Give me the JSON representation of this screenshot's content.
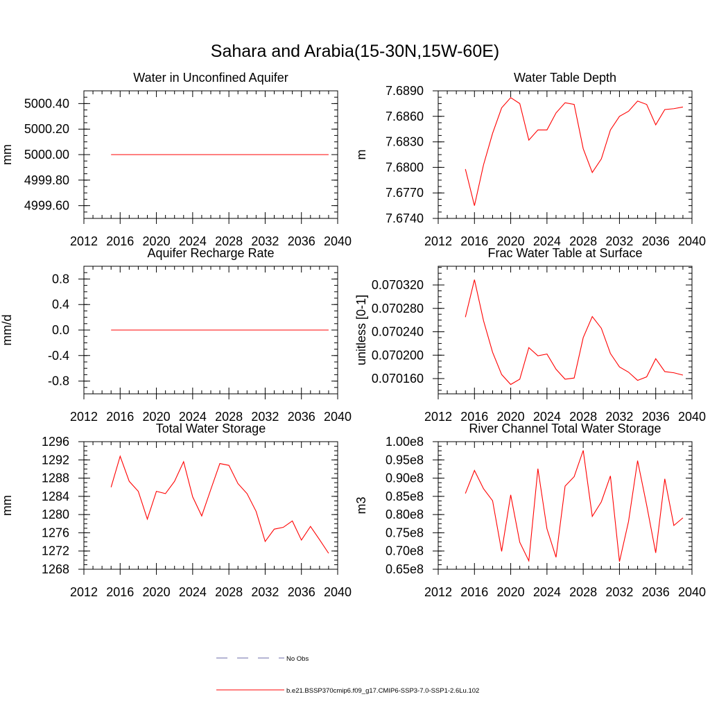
{
  "figure": {
    "title": "Sahara and Arabia(15-30N,15W-60E)",
    "series_color": "#ff0000",
    "obs_color": "#6a6aa8"
  },
  "legend": {
    "obs_label": "No Obs",
    "model_label": "b.e21.BSSP370cmip6.f09_g17.CMIP6-SSP3-7.0-SSP1-2.6Lu.102"
  },
  "chart_data": [
    {
      "type": "line",
      "title": "Water in Unconfined Aquifer",
      "xlabel": "",
      "ylabel": "mm",
      "xlim": [
        2012,
        2040
      ],
      "ylim": [
        4999.5,
        5000.5
      ],
      "xticks": [
        "2012",
        "2016",
        "2020",
        "2024",
        "2028",
        "2032",
        "2036",
        "2040"
      ],
      "yticks": [
        {
          "v": 4999.6,
          "label": "4999.60"
        },
        {
          "v": 4999.8,
          "label": "4999.80"
        },
        {
          "v": 5000.0,
          "label": "5000.00"
        },
        {
          "v": 5000.2,
          "label": "5000.20"
        },
        {
          "v": 5000.4,
          "label": "5000.40"
        }
      ],
      "x": [
        2015,
        2039
      ],
      "y": [
        5000.0,
        5000.0
      ]
    },
    {
      "type": "line",
      "title": "Water Table Depth",
      "xlabel": "",
      "ylabel": "m",
      "xlim": [
        2012,
        2040
      ],
      "ylim": [
        7.674,
        7.689
      ],
      "xticks": [
        "2012",
        "2016",
        "2020",
        "2024",
        "2028",
        "2032",
        "2036",
        "2040"
      ],
      "yticks": [
        {
          "v": 7.674,
          "label": "7.6740"
        },
        {
          "v": 7.677,
          "label": "7.6770"
        },
        {
          "v": 7.68,
          "label": "7.6800"
        },
        {
          "v": 7.683,
          "label": "7.6830"
        },
        {
          "v": 7.686,
          "label": "7.6860"
        },
        {
          "v": 7.689,
          "label": "7.6890"
        }
      ],
      "x": [
        2015,
        2016,
        2017,
        2018,
        2019,
        2020,
        2021,
        2022,
        2023,
        2024,
        2025,
        2026,
        2027,
        2028,
        2029,
        2030,
        2031,
        2032,
        2033,
        2034,
        2035,
        2036,
        2037,
        2038,
        2039
      ],
      "y": [
        7.6798,
        7.6755,
        7.6803,
        7.684,
        7.687,
        7.6882,
        7.6875,
        7.6832,
        7.6844,
        7.6844,
        7.6864,
        7.6876,
        7.6874,
        7.6822,
        7.6794,
        7.681,
        7.6844,
        7.686,
        7.6866,
        7.6878,
        7.6874,
        7.685,
        7.6868,
        7.6869,
        7.6871
      ]
    },
    {
      "type": "line",
      "title": "Aquifer Recharge Rate",
      "xlabel": "",
      "ylabel": "mm/d",
      "xlim": [
        2012,
        2040
      ],
      "ylim": [
        -1.0,
        1.0
      ],
      "xticks": [
        "2012",
        "2016",
        "2020",
        "2024",
        "2028",
        "2032",
        "2036",
        "2040"
      ],
      "yticks": [
        {
          "v": -0.8,
          "label": "-0.8"
        },
        {
          "v": -0.4,
          "label": "-0.4"
        },
        {
          "v": 0.0,
          "label": "0.0"
        },
        {
          "v": 0.4,
          "label": "0.4"
        },
        {
          "v": 0.8,
          "label": "0.8"
        }
      ],
      "x": [
        2015,
        2039
      ],
      "y": [
        0.0,
        0.0
      ]
    },
    {
      "type": "line",
      "title": "Frac Water Table at Surface",
      "xlabel": "",
      "ylabel": "unitless [0-1]",
      "xlim": [
        2012,
        2040
      ],
      "ylim": [
        0.070134,
        0.070352
      ],
      "xticks": [
        "2012",
        "2016",
        "2020",
        "2024",
        "2028",
        "2032",
        "2036",
        "2040"
      ],
      "yticks": [
        {
          "v": 0.07016,
          "label": "0.070160"
        },
        {
          "v": 0.0702,
          "label": "0.070200"
        },
        {
          "v": 0.07024,
          "label": "0.070240"
        },
        {
          "v": 0.07028,
          "label": "0.070280"
        },
        {
          "v": 0.07032,
          "label": "0.070320"
        }
      ],
      "x": [
        2015,
        2016,
        2017,
        2018,
        2019,
        2020,
        2021,
        2022,
        2023,
        2024,
        2025,
        2026,
        2027,
        2028,
        2029,
        2030,
        2031,
        2032,
        2033,
        2034,
        2035,
        2036,
        2037,
        2038,
        2039
      ],
      "y": [
        0.070265,
        0.070329,
        0.070259,
        0.070205,
        0.070167,
        0.07015,
        0.070159,
        0.070213,
        0.070199,
        0.070202,
        0.070176,
        0.070159,
        0.070161,
        0.07023,
        0.070266,
        0.070246,
        0.070203,
        0.07018,
        0.070171,
        0.070157,
        0.070163,
        0.070194,
        0.070172,
        0.07017,
        0.070166
      ]
    },
    {
      "type": "line",
      "title": "Total Water Storage",
      "xlabel": "",
      "ylabel": "mm",
      "xlim": [
        2012,
        2040
      ],
      "ylim": [
        1268,
        1296
      ],
      "xticks": [
        "2012",
        "2016",
        "2020",
        "2024",
        "2028",
        "2032",
        "2036",
        "2040"
      ],
      "yticks": [
        {
          "v": 1268,
          "label": "1268"
        },
        {
          "v": 1272,
          "label": "1272"
        },
        {
          "v": 1276,
          "label": "1276"
        },
        {
          "v": 1280,
          "label": "1280"
        },
        {
          "v": 1284,
          "label": "1284"
        },
        {
          "v": 1288,
          "label": "1288"
        },
        {
          "v": 1292,
          "label": "1292"
        },
        {
          "v": 1296,
          "label": "1296"
        }
      ],
      "x": [
        2015,
        2016,
        2017,
        2018,
        2019,
        2020,
        2021,
        2022,
        2023,
        2024,
        2025,
        2026,
        2027,
        2028,
        2029,
        2030,
        2031,
        2032,
        2033,
        2034,
        2035,
        2036,
        2037,
        2038,
        2039
      ],
      "y": [
        1286.0,
        1292.8,
        1287.3,
        1285.1,
        1279.0,
        1285.1,
        1284.6,
        1287.3,
        1291.6,
        1283.9,
        1279.7,
        1285.5,
        1291.2,
        1290.8,
        1286.8,
        1284.6,
        1280.7,
        1274.1,
        1276.8,
        1277.2,
        1278.6,
        1274.4,
        1277.4,
        1274.5,
        1271.5
      ]
    },
    {
      "type": "line",
      "title": "River Channel Total Water Storage",
      "xlabel": "",
      "ylabel": "m3",
      "xlim": [
        2012,
        2040
      ],
      "ylim": [
        0.65,
        1.0
      ],
      "xticks": [
        "2012",
        "2016",
        "2020",
        "2024",
        "2028",
        "2032",
        "2036",
        "2040"
      ],
      "yticks": [
        {
          "v": 0.65,
          "label": "0.65e8"
        },
        {
          "v": 0.7,
          "label": "0.70e8"
        },
        {
          "v": 0.75,
          "label": "0.75e8"
        },
        {
          "v": 0.8,
          "label": "0.80e8"
        },
        {
          "v": 0.85,
          "label": "0.85e8"
        },
        {
          "v": 0.9,
          "label": "0.90e8"
        },
        {
          "v": 0.95,
          "label": "0.95e8"
        },
        {
          "v": 1.0,
          "label": "1.00e8"
        }
      ],
      "x": [
        2015,
        2016,
        2017,
        2018,
        2019,
        2020,
        2021,
        2022,
        2023,
        2024,
        2025,
        2026,
        2027,
        2028,
        2029,
        2030,
        2031,
        2032,
        2033,
        2034,
        2035,
        2036,
        2037,
        2038,
        2039
      ],
      "y": [
        0.858,
        0.921,
        0.871,
        0.838,
        0.699,
        0.854,
        0.724,
        0.673,
        0.926,
        0.761,
        0.683,
        0.878,
        0.904,
        0.976,
        0.795,
        0.835,
        0.906,
        0.671,
        0.781,
        0.948,
        0.826,
        0.695,
        0.898,
        0.77,
        0.791
      ]
    }
  ]
}
